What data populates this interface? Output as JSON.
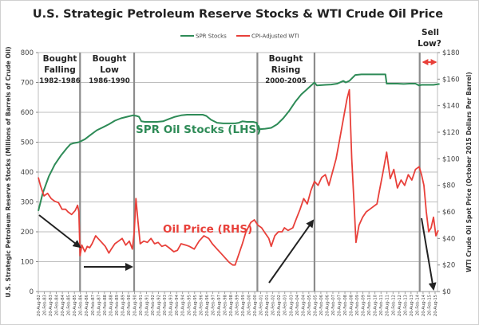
{
  "chart_data": {
    "type": "line",
    "title": "U.S. Strategic Petroleum Reserve Stocks & WTI Crude Oil Price",
    "legend": {
      "placement": "top-center",
      "entries": [
        "SPR Stocks",
        "CPI-Adjusted WTI"
      ]
    },
    "ylabel_left": "U.S. Strategic Petroleum Reserve Stocks (Millions of Barrels of Crude Oil)",
    "ylabel_right": "WTI Crude Oil Spot Price (October 2015 Dollars Per Barrel)",
    "ylim_left": [
      0,
      800
    ],
    "ylim_right": [
      0,
      180
    ],
    "yticks_left": [
      "0",
      "100",
      "200",
      "300",
      "400",
      "500",
      "600",
      "700",
      "800"
    ],
    "yticks_right": [
      "$0",
      "$20",
      "$40",
      "$60",
      "$80",
      "$100",
      "$120",
      "$140",
      "$160",
      "$180"
    ],
    "xlim": [
      1982.63,
      2016.0
    ],
    "xticks": [
      "20-Aug-82",
      "20-Feb-83",
      "20-Aug-83",
      "20-Feb-84",
      "20-Aug-84",
      "20-Feb-85",
      "20-Aug-85",
      "20-Feb-86",
      "20-Aug-86",
      "20-Feb-87",
      "20-Aug-87",
      "20-Feb-88",
      "20-Aug-88",
      "20-Feb-89",
      "20-Aug-89",
      "20-Feb-90",
      "20-Aug-90",
      "20-Feb-91",
      "20-Aug-91",
      "20-Feb-92",
      "20-Aug-92",
      "20-Feb-93",
      "20-Aug-93",
      "20-Feb-94",
      "20-Aug-94",
      "20-Feb-95",
      "20-Aug-95",
      "20-Feb-96",
      "20-Aug-96",
      "20-Feb-97",
      "20-Aug-97",
      "20-Feb-98",
      "20-Aug-98",
      "20-Feb-99",
      "20-Aug-99",
      "20-Feb-00",
      "20-Aug-00",
      "20-Feb-01",
      "20-Aug-01",
      "20-Feb-02",
      "20-Aug-02",
      "20-Feb-03",
      "20-Aug-03",
      "20-Feb-04",
      "20-Aug-04",
      "20-Feb-05",
      "20-Aug-05",
      "20-Feb-06",
      "20-Aug-06",
      "20-Feb-07",
      "20-Aug-07",
      "20-Feb-08",
      "20-Aug-08",
      "20-Feb-09",
      "20-Aug-09",
      "20-Feb-10",
      "20-Aug-10",
      "20-Feb-11",
      "20-Aug-11",
      "20-Feb-12",
      "20-Aug-12",
      "20-Feb-13",
      "20-Aug-13",
      "20-Feb-14",
      "20-Aug-14",
      "20-Feb-15",
      "20-Aug-15"
    ],
    "grid": true,
    "series": [
      {
        "name": "SPR Stocks",
        "axis": "left",
        "color": "#2e8b57",
        "x": [
          1982.63,
          1983.0,
          1983.5,
          1984.0,
          1984.5,
          1985.0,
          1985.3,
          1985.6,
          1986.0,
          1986.5,
          1987.0,
          1987.5,
          1988.0,
          1988.5,
          1989.0,
          1989.5,
          1990.0,
          1990.5,
          1990.8,
          1991.0,
          1991.2,
          1991.5,
          1992.0,
          1992.5,
          1993.0,
          1993.5,
          1994.0,
          1994.5,
          1995.0,
          1995.5,
          1996.0,
          1996.3,
          1996.6,
          1997.0,
          1997.5,
          1998.0,
          1998.5,
          1999.0,
          1999.3,
          1999.6,
          2000.0,
          2000.5,
          2000.8,
          2000.9,
          2001.5,
          2002.0,
          2002.5,
          2003.0,
          2003.5,
          2004.0,
          2004.5,
          2005.0,
          2005.6,
          2005.8,
          2006.5,
          2007.0,
          2007.5,
          2008.0,
          2008.2,
          2008.5,
          2009.0,
          2009.5,
          2010.0,
          2010.5,
          2011.0,
          2011.5,
          2011.6,
          2012.0,
          2012.5,
          2013.0,
          2013.5,
          2014.0,
          2014.3,
          2014.5,
          2015.0,
          2015.5,
          2016.0
        ],
        "values": [
          270,
          330,
          385,
          425,
          455,
          480,
          493,
          497,
          500,
          510,
          525,
          540,
          550,
          560,
          572,
          580,
          585,
          590,
          588,
          585,
          570,
          568,
          568,
          568,
          570,
          578,
          585,
          590,
          592,
          592,
          592,
          592,
          588,
          575,
          565,
          563,
          563,
          563,
          565,
          570,
          568,
          568,
          565,
          543,
          545,
          548,
          560,
          580,
          605,
          635,
          660,
          678,
          700,
          690,
          692,
          693,
          696,
          705,
          700,
          705,
          725,
          727,
          727,
          727,
          727,
          727,
          696,
          696,
          696,
          695,
          696,
          696,
          690,
          692,
          692,
          692,
          695
        ]
      },
      {
        "name": "CPI-Adjusted WTI",
        "axis": "right",
        "color": "#e8403a",
        "x": [
          1982.63,
          1982.8,
          1983.1,
          1983.4,
          1983.7,
          1984.0,
          1984.3,
          1984.6,
          1984.9,
          1985.1,
          1985.4,
          1985.7,
          1985.9,
          1986.0,
          1986.1,
          1986.25,
          1986.5,
          1986.7,
          1986.9,
          1987.1,
          1987.4,
          1987.6,
          1987.9,
          1988.2,
          1988.5,
          1988.7,
          1989.0,
          1989.3,
          1989.6,
          1989.9,
          1990.2,
          1990.45,
          1990.6,
          1990.75,
          1990.9,
          1991.1,
          1991.4,
          1991.7,
          1992.0,
          1992.3,
          1992.6,
          1992.9,
          1993.2,
          1993.5,
          1993.9,
          1994.2,
          1994.5,
          1994.9,
          1995.2,
          1995.6,
          1996.0,
          1996.4,
          1996.8,
          1997.1,
          1997.5,
          1997.9,
          1998.2,
          1998.5,
          1998.8,
          1999.0,
          1999.3,
          1999.6,
          1999.9,
          2000.3,
          2000.6,
          2000.9,
          2001.2,
          2001.5,
          2001.8,
          2002.0,
          2002.3,
          2002.6,
          2002.9,
          2003.1,
          2003.4,
          2003.8,
          2004.1,
          2004.4,
          2004.7,
          2005.0,
          2005.3,
          2005.6,
          2005.9,
          2006.2,
          2006.5,
          2006.8,
          2007.1,
          2007.4,
          2007.7,
          2008.0,
          2008.3,
          2008.5,
          2008.7,
          2008.9,
          2009.05,
          2009.3,
          2009.6,
          2009.9,
          2010.2,
          2010.5,
          2010.8,
          2011.0,
          2011.3,
          2011.6,
          2011.9,
          2012.2,
          2012.5,
          2012.8,
          2013.1,
          2013.4,
          2013.7,
          2014.0,
          2014.3,
          2014.5,
          2014.7,
          2014.9,
          2015.1,
          2015.3,
          2015.5,
          2015.7,
          2015.9
        ],
        "values": [
          86,
          80,
          72,
          74,
          70,
          68,
          67,
          62,
          62,
          60,
          58,
          61,
          65,
          60,
          27,
          35,
          30,
          34,
          33,
          36,
          42,
          40,
          37,
          34,
          29,
          32,
          36,
          38,
          40,
          35,
          38,
          32,
          44,
          70,
          55,
          36,
          38,
          37,
          40,
          36,
          37,
          34,
          35,
          33,
          30,
          31,
          36,
          35,
          34,
          32,
          38,
          42,
          40,
          36,
          32,
          28,
          25,
          22,
          20,
          20,
          28,
          36,
          45,
          52,
          54,
          50,
          48,
          44,
          40,
          34,
          42,
          45,
          45,
          48,
          46,
          48,
          55,
          62,
          70,
          66,
          76,
          83,
          80,
          86,
          88,
          80,
          90,
          100,
          115,
          130,
          145,
          152,
          100,
          65,
          37,
          50,
          56,
          60,
          62,
          64,
          66,
          76,
          90,
          105,
          85,
          92,
          78,
          84,
          80,
          88,
          84,
          92,
          94,
          88,
          80,
          60,
          45,
          48,
          56,
          42,
          46
        ]
      }
    ],
    "annotations": {
      "periods": [
        {
          "title_line1": "Bought",
          "title_line2": "Falling",
          "years": "1982-1986"
        },
        {
          "title_line1": "Bought",
          "title_line2": "Low",
          "years": "1986-1990"
        },
        {
          "title_line1": "Bought",
          "title_line2": "Rising",
          "years": "2000-2005"
        },
        {
          "title_line1": "Sell",
          "title_line2": "Low?",
          "years": ""
        }
      ],
      "divider_years": [
        1986.1,
        1990.6,
        2000.85,
        2005.6,
        2014.35
      ],
      "spr_label": "SPR Oil Stocks (LHS)",
      "oil_label": "Oil Price (RHS)",
      "arrow_color": "#222222",
      "sell_arrow_color": "#e8403a"
    }
  }
}
